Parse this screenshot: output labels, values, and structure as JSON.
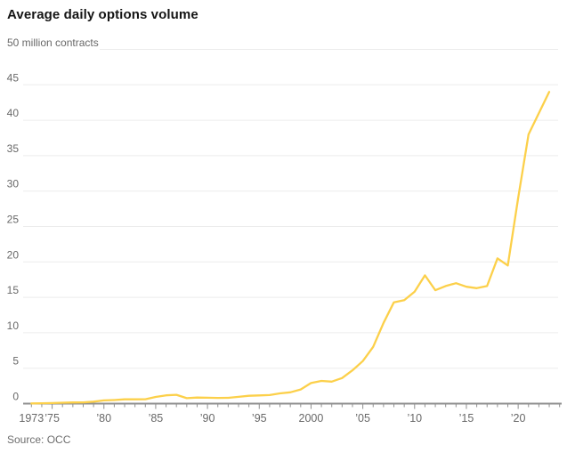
{
  "header": {
    "title": "Average daily options volume"
  },
  "footer": {
    "source": "Source: OCC"
  },
  "chart_data": {
    "type": "line",
    "title": "Average daily options volume",
    "unit_label": "50 million contracts",
    "ylabel": "million contracts",
    "source": "Source: OCC",
    "grid": "horizontal",
    "legend": "none",
    "line_color": "#fcd04a",
    "gridline_color": "#ececec",
    "axis_color": "#8f8f8f",
    "tick_label_color": "#686868",
    "ylim": [
      0,
      50
    ],
    "xlim": [
      1972.2,
      2024.2
    ],
    "y_ticks": [
      0,
      5,
      10,
      15,
      20,
      25,
      30,
      35,
      40,
      45
    ],
    "x_tick_labels": [
      {
        "year": 1973,
        "label": "1973"
      },
      {
        "year": 1975,
        "label": "’75"
      },
      {
        "year": 1980,
        "label": "’80"
      },
      {
        "year": 1985,
        "label": "’85"
      },
      {
        "year": 1990,
        "label": "’90"
      },
      {
        "year": 1995,
        "label": "’95"
      },
      {
        "year": 2000,
        "label": "2000"
      },
      {
        "year": 2005,
        "label": "’05"
      },
      {
        "year": 2010,
        "label": "’10"
      },
      {
        "year": 2015,
        "label": "’15"
      },
      {
        "year": 2020,
        "label": "’20"
      }
    ],
    "minor_ticks": {
      "start_year": 1973,
      "end_year": 2024,
      "step": 1
    },
    "series": [
      {
        "name": "Average daily options volume (million contracts)",
        "x": [
          1973,
          1974,
          1975,
          1976,
          1977,
          1978,
          1979,
          1980,
          1981,
          1982,
          1983,
          1984,
          1985,
          1986,
          1987,
          1988,
          1989,
          1990,
          1991,
          1992,
          1993,
          1994,
          1995,
          1996,
          1997,
          1998,
          1999,
          2000,
          2001,
          2002,
          2003,
          2004,
          2005,
          2006,
          2007,
          2008,
          2009,
          2010,
          2011,
          2012,
          2013,
          2014,
          2015,
          2016,
          2017,
          2018,
          2019,
          2020,
          2021,
          2022,
          2023
        ],
        "values": [
          0.03,
          0.05,
          0.08,
          0.13,
          0.16,
          0.18,
          0.28,
          0.45,
          0.5,
          0.6,
          0.6,
          0.62,
          0.94,
          1.17,
          1.24,
          0.77,
          0.85,
          0.83,
          0.8,
          0.82,
          0.95,
          1.1,
          1.15,
          1.2,
          1.45,
          1.6,
          2.0,
          2.9,
          3.2,
          3.1,
          3.6,
          4.7,
          6.0,
          8.0,
          11.4,
          14.3,
          14.6,
          15.8,
          18.1,
          16.0,
          16.6,
          17.0,
          16.5,
          16.3,
          16.6,
          20.5,
          19.5,
          29.0,
          38.0,
          41.0,
          44.0
        ]
      }
    ]
  }
}
